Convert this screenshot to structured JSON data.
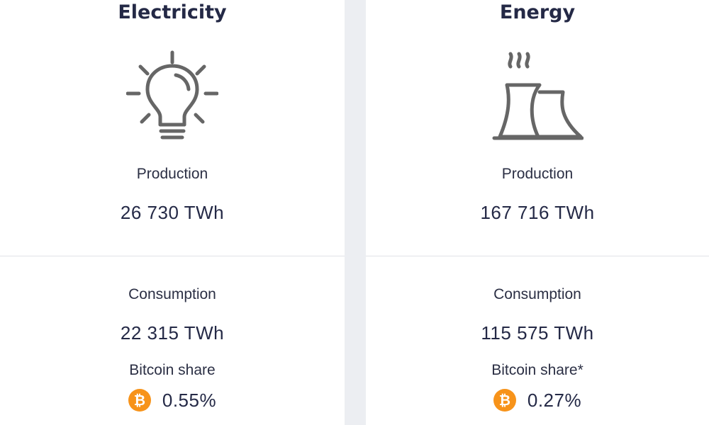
{
  "electricity": {
    "title": "Electricity",
    "icon": "lightbulb-icon",
    "production_label": "Production",
    "production_value": "26 730 TWh",
    "consumption_label": "Consumption",
    "consumption_value": "22 315 TWh",
    "share_label": "Bitcoin share",
    "share_value": "0.55%",
    "share_icon": "bitcoin-icon"
  },
  "energy": {
    "title": "Energy",
    "icon": "power-plant-icon",
    "production_label": "Production",
    "production_value": "167 716 TWh",
    "consumption_label": "Consumption",
    "consumption_value": "115 575 TWh",
    "share_label": "Bitcoin share*",
    "share_value": "0.27%",
    "share_icon": "bitcoin-icon"
  },
  "colors": {
    "background": "#eceef2",
    "card": "#ffffff",
    "text": "#242946",
    "icon_stroke": "#666666",
    "bitcoin": "#f7931a"
  }
}
